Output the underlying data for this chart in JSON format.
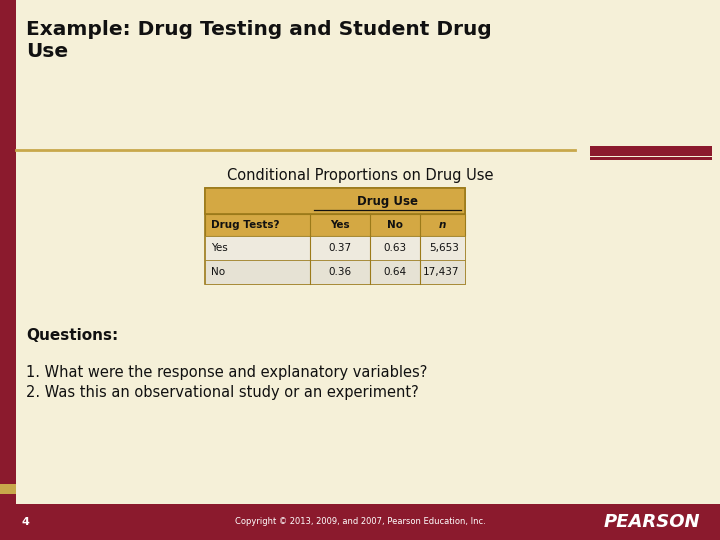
{
  "title_line1": "Example: Drug Testing and Student Drug",
  "title_line2": "Use",
  "subtitle": "Conditional Proportions on Drug Use",
  "bg_color": "#F5F0D8",
  "left_bar_color": "#8B1A2D",
  "divider_gold": "#C8A84B",
  "table_header_bg": "#D4A843",
  "table_data_row1_bg": "#EDE8D5",
  "table_data_row2_bg": "#E5E0CC",
  "table_border": "#9B7A1A",
  "table_col_header": "Drug Use",
  "table_row_header": "Drug Tests?",
  "table_subheaders": [
    "Yes",
    "No",
    "n"
  ],
  "table_rows": [
    [
      "Yes",
      "0.37",
      "0.63",
      "5,653"
    ],
    [
      "No",
      "0.36",
      "0.64",
      "17,437"
    ]
  ],
  "questions_label": "Questions:",
  "questions": [
    "1. What were the response and explanatory variables?",
    "2. Was this an observational study or an experiment?"
  ],
  "footer_bg": "#8B1A2D",
  "footer_text": "Copyright © 2013, 2009, and 2007, Pearson Education, Inc.",
  "footer_page": "4",
  "footer_logo": "PEARSON",
  "footer_color": "#ffffff"
}
